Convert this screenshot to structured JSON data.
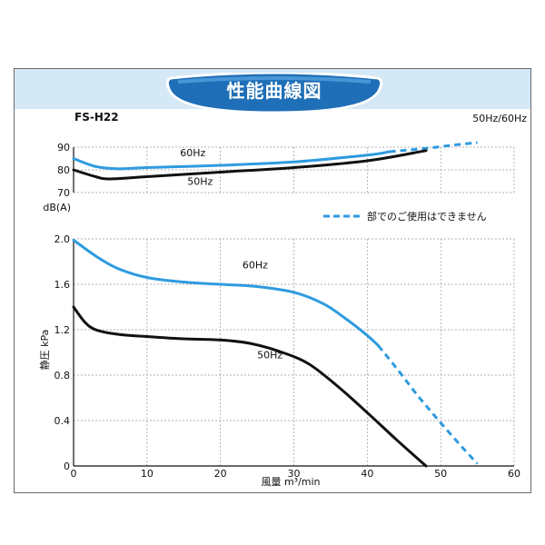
{
  "header": {
    "title": "性能曲線図",
    "model": "FS-H22",
    "freq_label": "50Hz/60Hz"
  },
  "colors": {
    "hz60": "#2e9be0",
    "hz50": "#111111",
    "band": "#d5e8f6",
    "title_fill": "#1f6fb8"
  },
  "chart_data": {
    "type": "line",
    "xlabel": "風量 m³/min",
    "xlim": [
      0,
      60
    ],
    "x_ticks": [
      "0",
      "10",
      "20",
      "30",
      "40",
      "50",
      "60"
    ],
    "legend": {
      "label": "部でのご使用はできません",
      "placement": "right"
    },
    "noise": {
      "ylabel": "dB(A)",
      "ylim": [
        70,
        90
      ],
      "y_ticks": [
        "70",
        "80",
        "90"
      ],
      "series": [
        {
          "name": "60Hz",
          "color": "#2e9be0",
          "x": [
            0,
            3,
            6,
            10,
            20,
            30,
            40,
            43
          ],
          "y": [
            85,
            81.5,
            80.5,
            81,
            82,
            83.5,
            86.5,
            88
          ]
        },
        {
          "name": "60Hz",
          "color": "#2e9be0",
          "dashed": true,
          "x": [
            43,
            48,
            52,
            55
          ],
          "y": [
            88,
            89.5,
            91,
            92
          ]
        },
        {
          "name": "50Hz",
          "color": "#111111",
          "x": [
            0,
            3,
            5,
            10,
            20,
            30,
            40,
            48
          ],
          "y": [
            80,
            77,
            76,
            77,
            79,
            81,
            84,
            88.5
          ]
        }
      ]
    },
    "pressure": {
      "ylabel": "静圧 kPa",
      "ylim": [
        0,
        2.0
      ],
      "y_ticks": [
        "0",
        "0.4",
        "0.8",
        "1.2",
        "1.6",
        "2.0"
      ],
      "series": [
        {
          "name": "60Hz",
          "color": "#2e9be0",
          "x": [
            0,
            3,
            6,
            10,
            15,
            20,
            25,
            30,
            34,
            37,
            40,
            41.5
          ],
          "y": [
            1.99,
            1.85,
            1.74,
            1.66,
            1.62,
            1.6,
            1.58,
            1.53,
            1.43,
            1.3,
            1.15,
            1.06
          ]
        },
        {
          "name": "60Hz",
          "color": "#2e9be0",
          "dashed": true,
          "x": [
            41.5,
            44,
            47,
            50,
            53,
            55
          ],
          "y": [
            1.06,
            0.86,
            0.61,
            0.38,
            0.16,
            0.02
          ]
        },
        {
          "name": "50Hz",
          "color": "#111111",
          "x": [
            0,
            1.5,
            3,
            6,
            10,
            15,
            20,
            24,
            28,
            32,
            36,
            40,
            44,
            48
          ],
          "y": [
            1.4,
            1.27,
            1.2,
            1.16,
            1.14,
            1.12,
            1.11,
            1.08,
            1.01,
            0.9,
            0.7,
            0.47,
            0.23,
            0
          ]
        }
      ]
    },
    "annotations": [
      {
        "text": "60Hz",
        "x": 14.5,
        "y": 86,
        "panel": "noise"
      },
      {
        "text": "50Hz",
        "x": 15.5,
        "y": 73.5,
        "panel": "noise"
      },
      {
        "text": "60Hz",
        "x": 23,
        "y": 1.74,
        "panel": "pressure"
      },
      {
        "text": "50Hz",
        "x": 25,
        "y": 0.95,
        "panel": "pressure"
      }
    ]
  }
}
